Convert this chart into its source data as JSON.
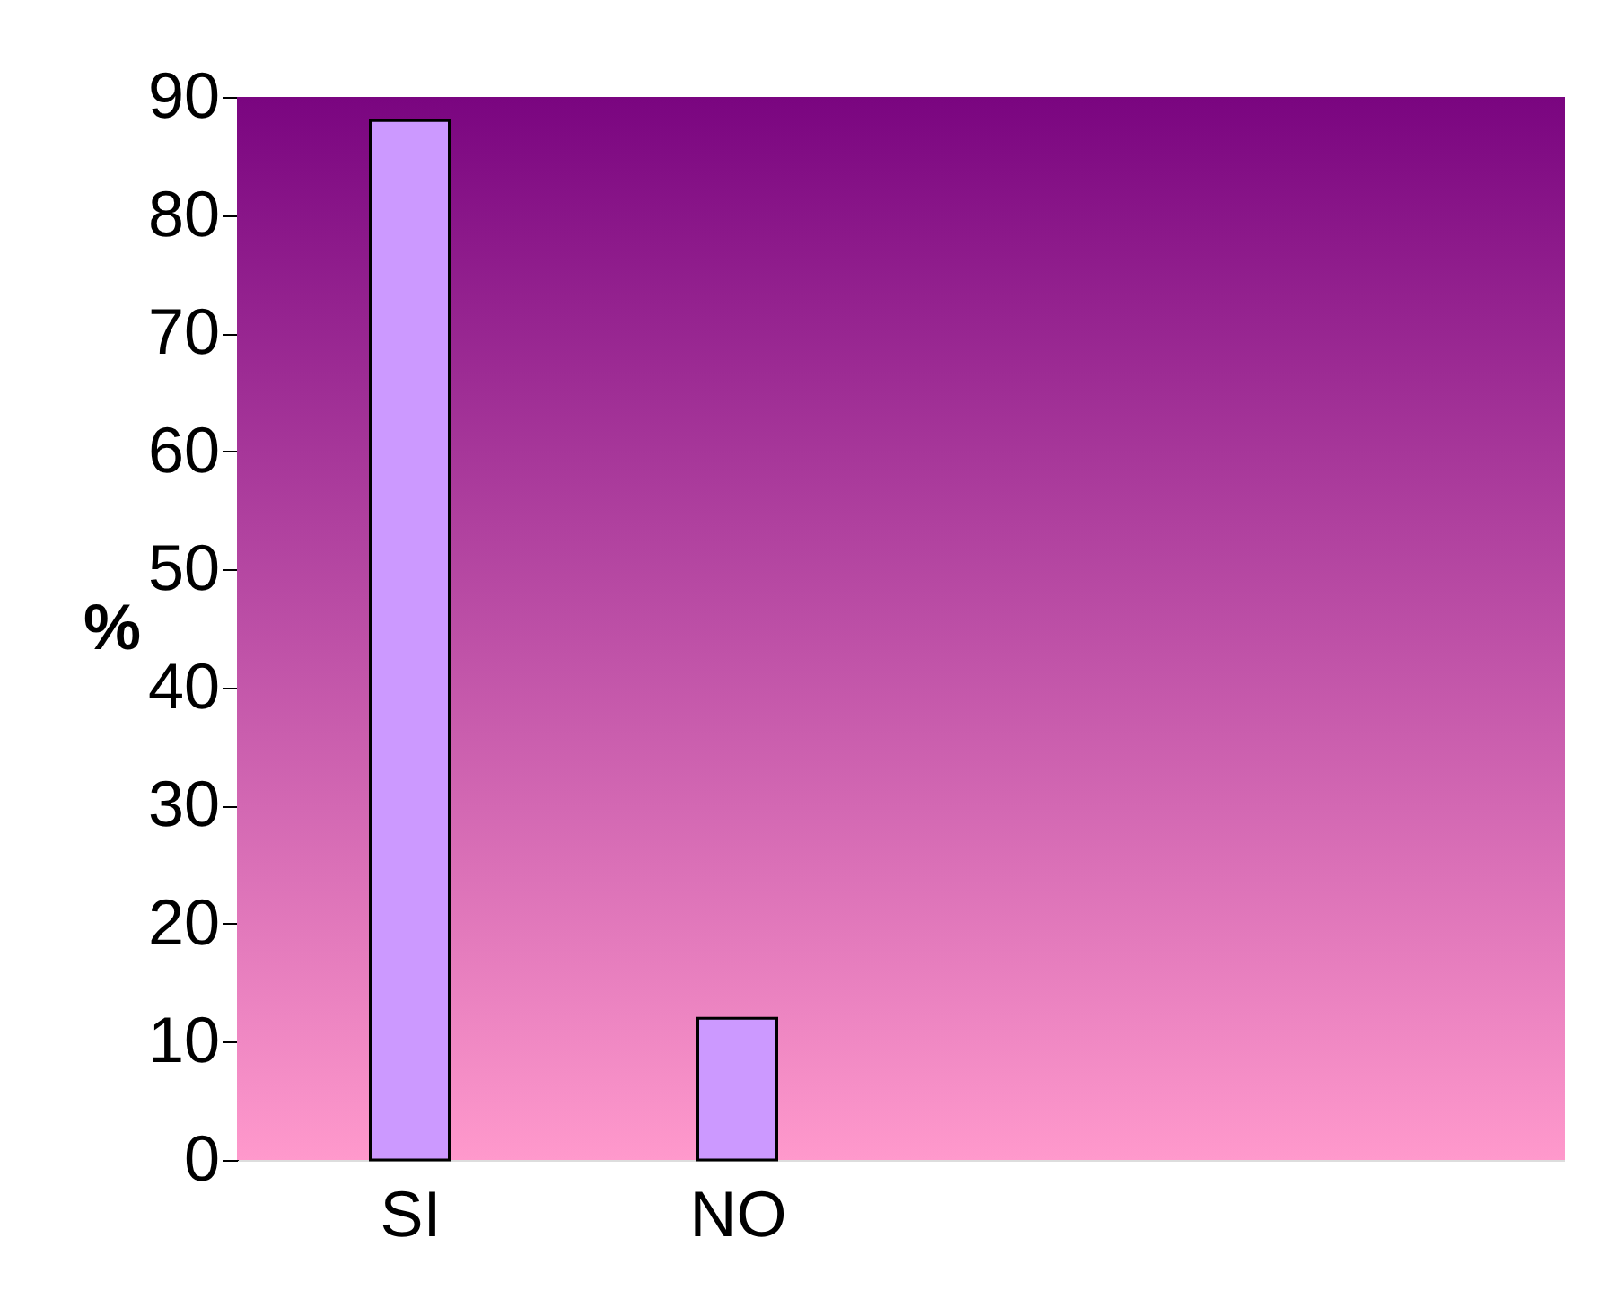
{
  "chart_data": {
    "type": "bar",
    "ylabel": "%",
    "categories": [
      "SI",
      "NO"
    ],
    "values": [
      88,
      12
    ],
    "color": "#cc99ff",
    "ylim": [
      0,
      90
    ],
    "yticks": [
      0,
      10,
      20,
      30,
      40,
      50,
      60,
      70,
      80,
      90
    ]
  }
}
